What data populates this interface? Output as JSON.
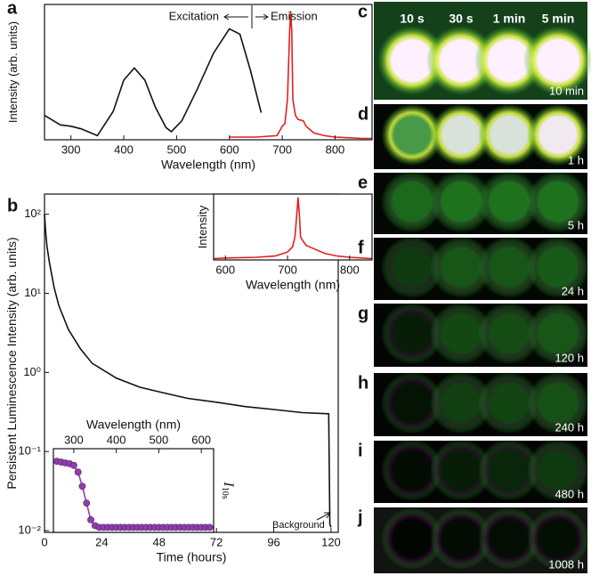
{
  "chart_data": [
    {
      "type": "line",
      "label": "a",
      "xlabel": "Wavelength (nm)",
      "ylabel": "Intensity (arb. units)",
      "annotations": [
        "Excitation",
        "Emission"
      ],
      "xlim": [
        250,
        870
      ],
      "ylim": [
        0,
        1
      ],
      "xticks": [
        300,
        400,
        500,
        600,
        700,
        800
      ],
      "series": [
        {
          "name": "Excitation",
          "color": "#111111",
          "x": [
            250,
            280,
            300,
            320,
            350,
            380,
            400,
            420,
            440,
            460,
            480,
            490,
            510,
            540,
            570,
            600,
            620,
            640,
            660
          ],
          "values": [
            0.18,
            0.11,
            0.1,
            0.08,
            0.03,
            0.21,
            0.44,
            0.53,
            0.44,
            0.24,
            0.09,
            0.06,
            0.14,
            0.38,
            0.64,
            0.82,
            0.78,
            0.51,
            0.2
          ]
        },
        {
          "name": "Emission",
          "color": "#e02020",
          "x": [
            600,
            650,
            690,
            700,
            705,
            710,
            714,
            716,
            718,
            720,
            725,
            730,
            740,
            745,
            760,
            780,
            800,
            850,
            870
          ],
          "values": [
            0.02,
            0.02,
            0.03,
            0.1,
            0.12,
            0.3,
            0.8,
            0.95,
            0.8,
            0.3,
            0.18,
            0.15,
            0.14,
            0.1,
            0.05,
            0.03,
            0.02,
            0.01,
            0.01
          ]
        }
      ]
    },
    {
      "type": "line",
      "label": "b",
      "xlabel": "Time (hours)",
      "ylabel": "Persistent Luminescence Intensity (arb. units)",
      "annotations": [
        "Background"
      ],
      "log_y": true,
      "xlim": [
        0,
        123
      ],
      "ylim": [
        0.0095,
        180
      ],
      "xticks": [
        0,
        24,
        48,
        72,
        96,
        120
      ],
      "yticks": [
        {
          "value": 0.01,
          "label": "10⁻²"
        },
        {
          "value": 0.1,
          "label": "10⁻¹"
        },
        {
          "value": 1,
          "label": "10⁰"
        },
        {
          "value": 10,
          "label": "10¹"
        },
        {
          "value": 100,
          "label": "10²"
        }
      ],
      "series": [
        {
          "name": "Persistent luminescence",
          "color": "#111111",
          "x": [
            0,
            0.5,
            1,
            2,
            4,
            6,
            10,
            15,
            20,
            30,
            40,
            50,
            60,
            72,
            84,
            96,
            108,
            119,
            119.5,
            120
          ],
          "values": [
            100,
            60,
            40,
            25,
            12,
            7,
            3.5,
            2.0,
            1.3,
            0.85,
            0.65,
            0.55,
            0.47,
            0.42,
            0.37,
            0.34,
            0.31,
            0.3,
            0.012,
            0.011
          ]
        }
      ]
    },
    {
      "type": "line",
      "xlabel": "Wavelength (nm)",
      "ylabel": "Intensity",
      "xlim": [
        581,
        836
      ],
      "ylim": [
        0,
        1
      ],
      "xticks": [
        600,
        700,
        800
      ],
      "series": [
        {
          "name": "Emission",
          "color": "#e02020",
          "x": [
            581,
            600,
            650,
            680,
            700,
            708,
            712,
            715,
            717,
            719,
            721,
            724,
            730,
            740,
            760,
            780,
            800,
            820,
            836
          ],
          "values": [
            0.02,
            0.03,
            0.04,
            0.06,
            0.12,
            0.2,
            0.35,
            0.7,
            0.95,
            0.7,
            0.35,
            0.3,
            0.22,
            0.18,
            0.1,
            0.06,
            0.04,
            0.03,
            0.02
          ]
        }
      ]
    },
    {
      "type": "line",
      "markers": true,
      "xlabel": "Wavelength (nm)",
      "ylabel": "I",
      "ylabel_sub": "10s",
      "xlim": [
        252,
        629
      ],
      "ylim": [
        0,
        1
      ],
      "xticks": [
        300,
        400,
        500,
        600
      ],
      "series": [
        {
          "name": "I10s",
          "color": "#8e3fa8",
          "x": [
            260,
            270,
            280,
            290,
            300,
            310,
            320,
            330,
            340,
            350,
            360,
            370,
            380,
            390,
            400,
            410,
            420,
            430,
            440,
            450,
            460,
            470,
            480,
            490,
            500,
            510,
            520,
            530,
            540,
            550,
            560,
            570,
            580,
            590,
            600,
            610,
            620
          ],
          "values": [
            0.85,
            0.84,
            0.83,
            0.82,
            0.8,
            0.72,
            0.55,
            0.35,
            0.15,
            0.08,
            0.06,
            0.06,
            0.06,
            0.06,
            0.06,
            0.06,
            0.06,
            0.06,
            0.06,
            0.06,
            0.06,
            0.06,
            0.06,
            0.06,
            0.06,
            0.06,
            0.06,
            0.06,
            0.06,
            0.06,
            0.06,
            0.06,
            0.06,
            0.06,
            0.06,
            0.06,
            0.06
          ]
        }
      ]
    }
  ],
  "photo_panels": {
    "header": [
      "10 s",
      "30 s",
      "1 min",
      "5 min"
    ],
    "panels": [
      {
        "label": "c",
        "time": "10 min"
      },
      {
        "label": "d",
        "time": "1 h"
      },
      {
        "label": "e",
        "time": "5 h"
      },
      {
        "label": "f",
        "time": "24 h"
      },
      {
        "label": "g",
        "time": "120 h"
      },
      {
        "label": "h",
        "time": "240 h"
      },
      {
        "label": "i",
        "time": "480 h"
      },
      {
        "label": "j",
        "time": "1008 h"
      }
    ]
  }
}
